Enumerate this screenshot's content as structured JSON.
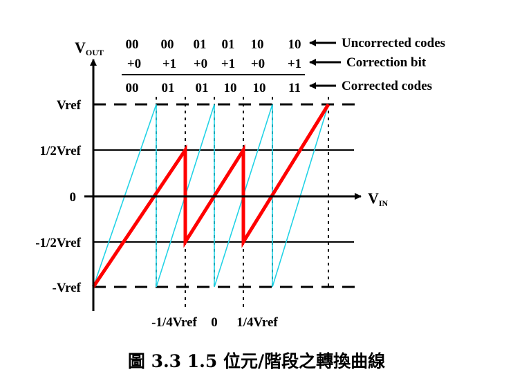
{
  "axes": {
    "y_label_main": "V",
    "y_label_sub": "OUT",
    "x_label_main": "V",
    "x_label_sub": "IN",
    "y_ticks": [
      "Vref",
      "1/2Vref",
      "0",
      "-1/2Vref",
      "-Vref"
    ],
    "x_ticks": [
      "-1/4Vref",
      "0",
      "1/4Vref"
    ]
  },
  "codes": {
    "uncorrected": [
      "00",
      "00",
      "01",
      "01",
      "10",
      "10"
    ],
    "correction": [
      "+0",
      "+1",
      "+0",
      "+1",
      "+0",
      "+1"
    ],
    "corrected": [
      "00",
      "01",
      "01",
      "10",
      "10",
      "11"
    ]
  },
  "legend": {
    "uncorrected": "Uncorrected codes",
    "correction": "Correction bit",
    "corrected": "Corrected codes"
  },
  "caption": "圖 3.3 1.5 位元/階段之轉換曲線",
  "colors": {
    "corrected_curve": "#ff0000",
    "uncorrected_curve": "#22d3e6",
    "axis": "#000000"
  }
}
